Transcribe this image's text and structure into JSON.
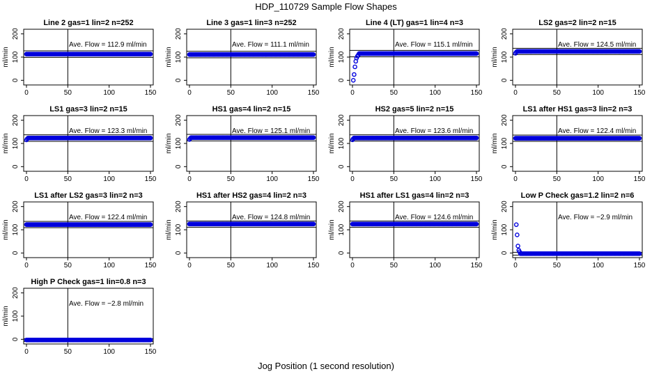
{
  "title": "HDP_110729  Sample Flow Shapes",
  "xlabel": "Jog Position (1 second resolution)",
  "colors": {
    "points": "#0000dd",
    "axis": "#000000"
  },
  "chart_data": [
    {
      "type": "scatter",
      "title": "Line 2 gas=1 lin=2 n=252",
      "annotation": "Ave. Flow =  112.9  ml/min",
      "ylabel": "ml/min",
      "xlim": [
        0,
        150
      ],
      "ylim": [
        -20,
        220
      ],
      "xticks": [
        0,
        50,
        100,
        150
      ],
      "yticks": [
        0,
        100,
        200
      ],
      "vline": 50,
      "hlines": [
        99,
        127
      ],
      "shape": "flat",
      "level": 112.9
    },
    {
      "type": "scatter",
      "title": "Line 3 gas=1 lin=3 n=252",
      "annotation": "Ave. Flow =  111.1  ml/min",
      "ylabel": "ml/min",
      "xlim": [
        0,
        150
      ],
      "ylim": [
        -20,
        220
      ],
      "xticks": [
        0,
        50,
        100,
        150
      ],
      "yticks": [
        0,
        100,
        200
      ],
      "vline": 50,
      "hlines": [
        97,
        125
      ],
      "shape": "flat",
      "level": 111.1
    },
    {
      "type": "scatter",
      "title": "Line 4 (LT) gas=1 lin=4 n=3",
      "annotation": "Ave. Flow =  115.1  ml/min",
      "ylabel": "ml/min",
      "xlim": [
        0,
        150
      ],
      "ylim": [
        -20,
        220
      ],
      "xticks": [
        0,
        50,
        100,
        150
      ],
      "yticks": [
        0,
        100,
        200
      ],
      "vline": 50,
      "hlines": [
        101,
        129
      ],
      "shape": "rise",
      "level": 115.1
    },
    {
      "type": "scatter",
      "title": "LS2 gas=2 lin=2 n=15",
      "annotation": "Ave. Flow =  124.5  ml/min",
      "ylabel": "ml/min",
      "xlim": [
        0,
        150
      ],
      "ylim": [
        -20,
        220
      ],
      "xticks": [
        0,
        50,
        100,
        150
      ],
      "yticks": [
        0,
        100,
        200
      ],
      "vline": 50,
      "hlines": [
        111,
        138
      ],
      "shape": "flat-start",
      "level": 124.5
    },
    {
      "type": "scatter",
      "title": "LS1 gas=3 lin=2 n=15",
      "annotation": "Ave. Flow =  123.3  ml/min",
      "ylabel": "ml/min",
      "xlim": [
        0,
        150
      ],
      "ylim": [
        -20,
        220
      ],
      "xticks": [
        0,
        50,
        100,
        150
      ],
      "yticks": [
        0,
        100,
        200
      ],
      "vline": 50,
      "hlines": [
        109,
        137
      ],
      "shape": "flat-start",
      "level": 123.3
    },
    {
      "type": "scatter",
      "title": "HS1 gas=4 lin=2 n=15",
      "annotation": "Ave. Flow =  125.1  ml/min",
      "ylabel": "ml/min",
      "xlim": [
        0,
        150
      ],
      "ylim": [
        -20,
        220
      ],
      "xticks": [
        0,
        50,
        100,
        150
      ],
      "yticks": [
        0,
        100,
        200
      ],
      "vline": 50,
      "hlines": [
        111,
        139
      ],
      "shape": "flat-start",
      "level": 125.1
    },
    {
      "type": "scatter",
      "title": "HS2 gas=5 lin=2 n=15",
      "annotation": "Ave. Flow =  123.6  ml/min",
      "ylabel": "ml/min",
      "xlim": [
        0,
        150
      ],
      "ylim": [
        -20,
        220
      ],
      "xticks": [
        0,
        50,
        100,
        150
      ],
      "yticks": [
        0,
        100,
        200
      ],
      "vline": 50,
      "hlines": [
        110,
        137
      ],
      "shape": "flat-start",
      "level": 123.6
    },
    {
      "type": "scatter",
      "title": "LS1 after HS1 gas=3 lin=2 n=3",
      "annotation": "Ave. Flow =  122.4  ml/min",
      "ylabel": "ml/min",
      "xlim": [
        0,
        150
      ],
      "ylim": [
        -20,
        220
      ],
      "xticks": [
        0,
        50,
        100,
        150
      ],
      "yticks": [
        0,
        100,
        200
      ],
      "vline": 50,
      "hlines": [
        109,
        136
      ],
      "shape": "flat",
      "level": 122.4
    },
    {
      "type": "scatter",
      "title": "LS1 after LS2 gas=3 lin=2 n=3",
      "annotation": "Ave. Flow =  122.4  ml/min",
      "ylabel": "ml/min",
      "xlim": [
        0,
        150
      ],
      "ylim": [
        -20,
        220
      ],
      "xticks": [
        0,
        50,
        100,
        150
      ],
      "yticks": [
        0,
        100,
        200
      ],
      "vline": 50,
      "hlines": [
        109,
        136
      ],
      "shape": "flat",
      "level": 122.4
    },
    {
      "type": "scatter",
      "title": "HS1 after HS2 gas=4 lin=2 n=3",
      "annotation": "Ave. Flow =  124.8  ml/min",
      "ylabel": "ml/min",
      "xlim": [
        0,
        150
      ],
      "ylim": [
        -20,
        220
      ],
      "xticks": [
        0,
        50,
        100,
        150
      ],
      "yticks": [
        0,
        100,
        200
      ],
      "vline": 50,
      "hlines": [
        111,
        138
      ],
      "shape": "flat",
      "level": 124.8
    },
    {
      "type": "scatter",
      "title": "HS1 after LS1 gas=4 lin=2 n=3",
      "annotation": "Ave. Flow =  124.6  ml/min",
      "ylabel": "ml/min",
      "xlim": [
        0,
        150
      ],
      "ylim": [
        -20,
        220
      ],
      "xticks": [
        0,
        50,
        100,
        150
      ],
      "yticks": [
        0,
        100,
        200
      ],
      "vline": 50,
      "hlines": [
        111,
        138
      ],
      "shape": "flat",
      "level": 124.6
    },
    {
      "type": "scatter",
      "title": "Low P Check gas=1.2 lin=2 n=6",
      "annotation": "Ave. Flow =  −2.9  ml/min",
      "ylabel": "ml/min",
      "xlim": [
        0,
        150
      ],
      "ylim": [
        -20,
        220
      ],
      "xticks": [
        0,
        50,
        100,
        150
      ],
      "yticks": [
        0,
        100,
        200
      ],
      "vline": 50,
      "hlines": [
        -9,
        3
      ],
      "shape": "decay",
      "level": -2.9,
      "early_points": [
        [
          1,
          122
        ],
        [
          2,
          78
        ],
        [
          3,
          30
        ],
        [
          4,
          12
        ],
        [
          5,
          5
        ]
      ]
    },
    {
      "type": "scatter",
      "title": "High P Check gas=1 lin=0.8 n=3",
      "annotation": "Ave. Flow =  −2.8  ml/min",
      "ylabel": "ml/min",
      "xlim": [
        0,
        150
      ],
      "ylim": [
        -20,
        220
      ],
      "xticks": [
        0,
        50,
        100,
        150
      ],
      "yticks": [
        0,
        100,
        200
      ],
      "vline": 50,
      "hlines": [
        -9,
        3
      ],
      "shape": "flat",
      "level": -2.8
    }
  ]
}
